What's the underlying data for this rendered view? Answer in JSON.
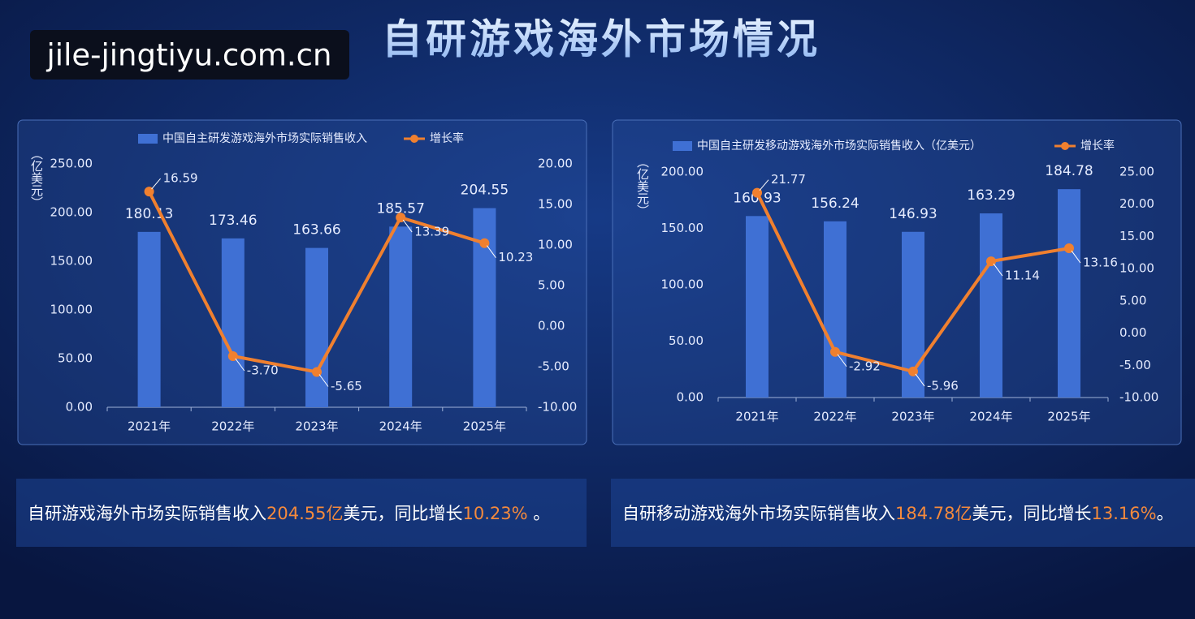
{
  "title": "自研游戏海外市场情况",
  "watermark": "jile-jingtiyu.com.cn",
  "chart_data": [
    {
      "type": "bar_line",
      "ylabel": "（亿美元）",
      "categories": [
        "2021年",
        "2022年",
        "2023年",
        "2024年",
        "2025年"
      ],
      "series": [
        {
          "name": "中国自主研发游戏海外市场实际销售收入",
          "type": "bar",
          "color": "#3f70d4",
          "values": [
            180.13,
            173.46,
            163.66,
            185.57,
            204.55
          ]
        },
        {
          "name": "增长率",
          "type": "line",
          "axis": "y2",
          "color": "#f0802f",
          "values": [
            16.59,
            -3.7,
            -5.65,
            13.39,
            10.23
          ],
          "value_labels": [
            "16.59",
            "-3.70",
            "-5.65",
            "13.39",
            "10.23"
          ]
        }
      ],
      "ylim": [
        0,
        250
      ],
      "yticks": [
        {
          "value": 0,
          "label": "0.00"
        },
        {
          "value": 50,
          "label": "50.00"
        },
        {
          "value": 100,
          "label": "100.00"
        },
        {
          "value": 150,
          "label": "150.00"
        },
        {
          "value": 200,
          "label": "200.00"
        },
        {
          "value": 250,
          "label": "250.00"
        }
      ],
      "y2lim": [
        -10,
        20
      ],
      "y2ticks": [
        {
          "value": -10,
          "label": "-10.00"
        },
        {
          "value": -5,
          "label": "-5.00"
        },
        {
          "value": 0,
          "label": "0.00"
        },
        {
          "value": 5,
          "label": "5.00"
        },
        {
          "value": 10,
          "label": "10.00"
        },
        {
          "value": 15,
          "label": "15.00"
        },
        {
          "value": 20,
          "label": "20.00"
        }
      ],
      "legend": "top"
    },
    {
      "type": "bar_line",
      "ylabel": "（亿美元）",
      "categories": [
        "2021年",
        "2022年",
        "2023年",
        "2024年",
        "2025年"
      ],
      "series": [
        {
          "name": "中国自主研发移动游戏海外市场实际销售收入（亿美元）",
          "type": "bar",
          "color": "#3f70d4",
          "values": [
            160.93,
            156.24,
            146.93,
            163.29,
            184.78
          ]
        },
        {
          "name": "增长率",
          "type": "line",
          "axis": "y2",
          "color": "#f0802f",
          "values": [
            21.77,
            -2.92,
            -5.96,
            11.14,
            13.16
          ]
        }
      ],
      "ylim": [
        0,
        200
      ],
      "yticks": [
        {
          "value": 0,
          "label": "0.00"
        },
        {
          "value": 50,
          "label": "50.00"
        },
        {
          "value": 100,
          "label": "100.00"
        },
        {
          "value": 150,
          "label": "150.00"
        },
        {
          "value": 200,
          "label": "200.00"
        }
      ],
      "y2lim": [
        -10,
        25
      ],
      "y2ticks": [
        {
          "value": -10,
          "label": "-10.00"
        },
        {
          "value": -5,
          "label": "-5.00"
        },
        {
          "value": 0,
          "label": "0.00"
        },
        {
          "value": 5,
          "label": "5.00"
        },
        {
          "value": 10,
          "label": "10.00"
        },
        {
          "value": 15,
          "label": "15.00"
        },
        {
          "value": 20,
          "label": "20.00"
        },
        {
          "value": 25,
          "label": "25.00"
        }
      ],
      "legend": "top"
    }
  ],
  "summaries": [
    {
      "parts": [
        "自研游戏海外市场实际销售收入",
        "204.55亿",
        "美元，同比增长",
        "10.23%",
        " 。"
      ]
    },
    {
      "parts": [
        "自研移动游戏海外市场实际销售收入",
        "184.78亿",
        "美元，同比增长",
        "13.16%",
        "。"
      ]
    }
  ]
}
